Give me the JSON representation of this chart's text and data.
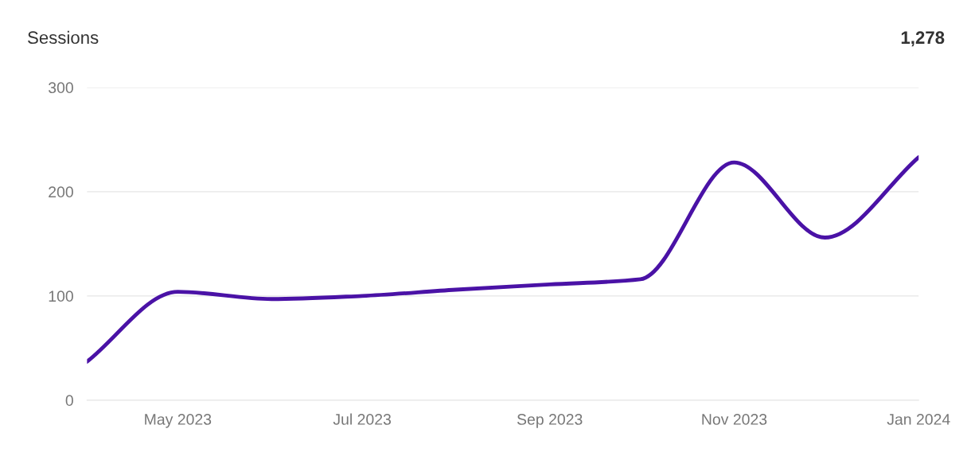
{
  "chart_data": {
    "type": "line",
    "title": "Sessions",
    "annotations": [
      "1,278"
    ],
    "x": [
      "2023-04",
      "2023-05",
      "2023-06",
      "2023-07",
      "2023-08",
      "2023-09",
      "2023-10",
      "2023-11",
      "2023-12",
      "2024-01"
    ],
    "series": [
      {
        "color": "#4a12a6",
        "values": [
          37,
          104,
          97,
          100,
          106,
          111,
          116,
          228,
          156,
          233
        ]
      }
    ],
    "xlim": [
      "2023-04",
      "2024-01"
    ],
    "xticks": [
      {
        "value": "2023-05",
        "label": "May 2023"
      },
      {
        "value": "2023-07",
        "label": "Jul 2023"
      },
      {
        "value": "2023-09",
        "label": "Sep 2023"
      },
      {
        "value": "2023-11",
        "label": "Nov 2023"
      },
      {
        "value": "2024-01",
        "label": "Jan 2024"
      }
    ],
    "ylim": [
      0,
      300
    ],
    "yticks": [
      0,
      100,
      200,
      300
    ],
    "grid": "y",
    "marker": "none",
    "line_style": "solid",
    "legend": false
  }
}
